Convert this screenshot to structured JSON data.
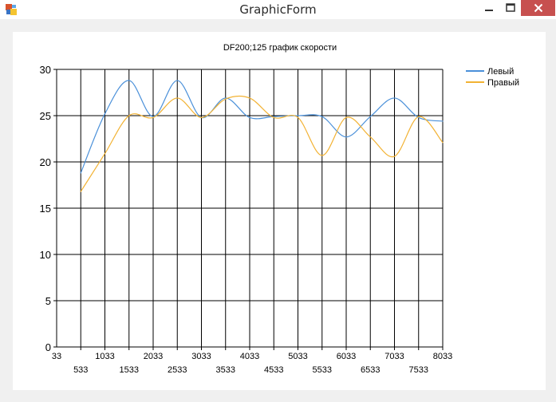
{
  "window": {
    "title": "GraphicForm",
    "icons": {
      "app": "app-icon",
      "minimize": "minimize-icon",
      "maximize": "maximize-icon",
      "close": "close-icon"
    },
    "colors": {
      "close_button": "#c7504f"
    }
  },
  "chart_data": {
    "type": "line",
    "title": "DF200;125 график скорости",
    "xlabel": "",
    "ylabel": "",
    "xlim": [
      33,
      8033
    ],
    "ylim": [
      0,
      30
    ],
    "x_ticks_upper": [
      "33",
      "1033",
      "2033",
      "3033",
      "4033",
      "5033",
      "6033",
      "7033",
      "8033"
    ],
    "x_ticks_lower": [
      "533",
      "1533",
      "2533",
      "3533",
      "4533",
      "5533",
      "6533",
      "7533"
    ],
    "y_ticks": [
      "0",
      "5",
      "10",
      "15",
      "20",
      "25",
      "30"
    ],
    "grid": true,
    "legend_position": "top-right",
    "x": [
      533,
      1033,
      1533,
      2033,
      2533,
      3033,
      3533,
      4033,
      4533,
      5033,
      5533,
      6033,
      6533,
      7033,
      7533,
      8033
    ],
    "series": [
      {
        "name": "Левый",
        "color": "#4a90d9",
        "values": [
          18.8,
          25.2,
          28.8,
          24.9,
          28.8,
          24.8,
          26.9,
          24.8,
          24.9,
          25.0,
          24.9,
          22.7,
          24.9,
          26.9,
          24.8,
          24.4
        ]
      },
      {
        "name": "Правый",
        "color": "#f2b233",
        "values": [
          16.8,
          20.9,
          25.0,
          24.8,
          26.9,
          24.8,
          26.8,
          26.9,
          24.8,
          24.8,
          20.7,
          24.8,
          22.7,
          20.6,
          24.9,
          22.1
        ]
      }
    ]
  }
}
